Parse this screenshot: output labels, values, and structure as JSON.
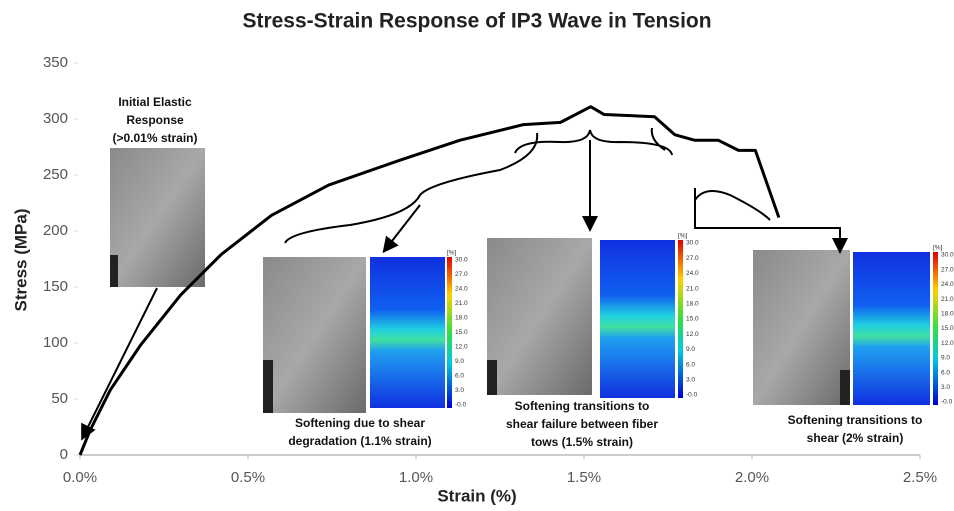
{
  "chart_data": {
    "type": "line",
    "title": "Stress-Strain Response of IP3 Wave in Tension",
    "x_label": "Strain (%)",
    "y_label": "Stress (MPa)",
    "x": [
      0,
      0.03,
      0.09,
      0.18,
      0.3,
      0.42,
      0.57,
      0.74,
      0.95,
      1.13,
      1.32,
      1.43,
      1.52,
      1.56,
      1.71,
      1.77,
      1.83,
      1.9,
      1.96,
      2.01,
      2.08
    ],
    "series": [
      {
        "color": "#000000",
        "values": [
          0,
          22,
          58,
          98,
          143,
          179,
          214,
          241,
          263,
          281,
          295,
          297,
          311,
          304,
          302,
          286,
          281,
          281,
          272,
          272,
          212
        ]
      }
    ],
    "xlim": [
      0,
      2.5
    ],
    "xticks": [
      {
        "value": 0,
        "label": "0.0%"
      },
      {
        "value": 0.5,
        "label": "0.5%"
      },
      {
        "value": 1,
        "label": "1.0%"
      },
      {
        "value": 1.5,
        "label": "1.5%"
      },
      {
        "value": 2,
        "label": "2.0%"
      },
      {
        "value": 2.5,
        "label": "2.5%"
      }
    ],
    "ylim": [
      0,
      350
    ],
    "yticks": [
      0,
      50,
      100,
      150,
      200,
      250,
      300,
      350
    ],
    "grid": false,
    "annotations": [
      [
        "Initial Elastic",
        "Response",
        "(>0.01% strain)"
      ],
      [
        "Softening due to shear",
        "degradation (1.1% strain)"
      ],
      [
        "Softening transitions to",
        "shear failure between fiber",
        "tows (1.5% strain)"
      ],
      [
        "Softening transitions to",
        "shear (2% strain)"
      ]
    ],
    "colorbar": {
      "unit": "[%]",
      "labels": [
        "30.0",
        "27.0",
        "24.0",
        "21.0",
        "18.0",
        "15.0",
        "12.0",
        "9.0",
        "6.0",
        "3.0",
        "-0.0"
      ]
    }
  }
}
